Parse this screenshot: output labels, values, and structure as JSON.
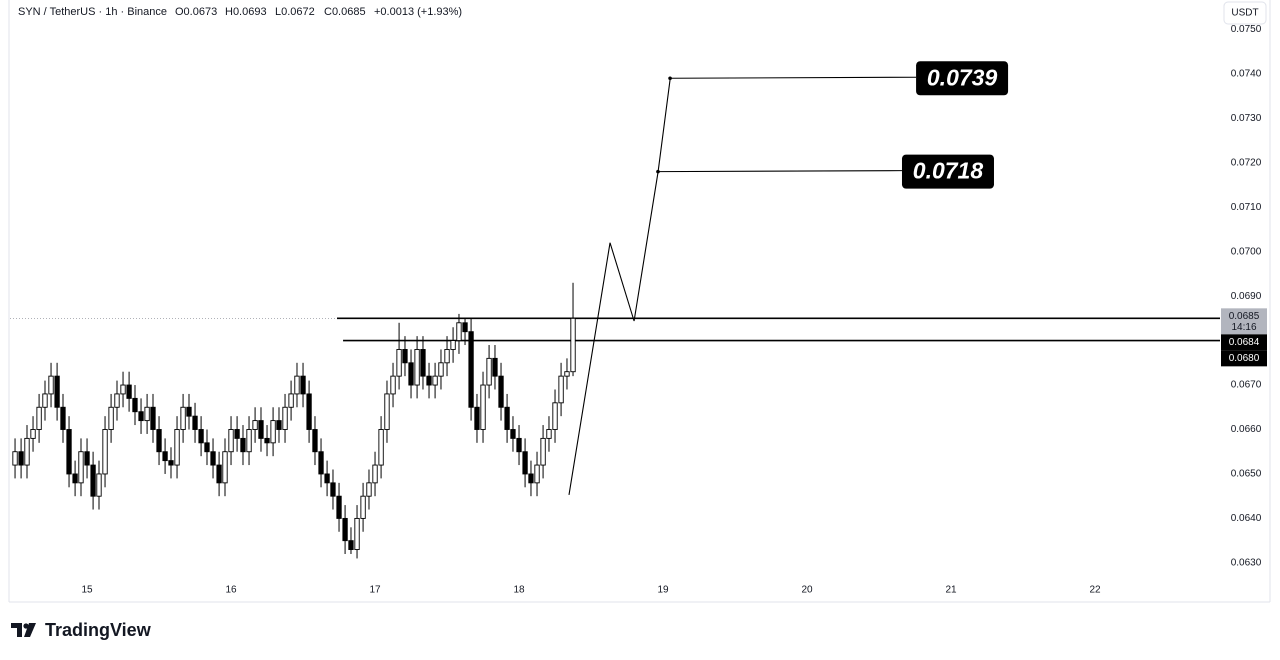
{
  "chart_data": {
    "type": "candlestick",
    "header": {
      "symbol": "SYN / TetherUS · 1h · Binance",
      "open": "O0.0673",
      "high": "H0.0693",
      "low": "L0.0672",
      "close": "C0.0685",
      "change": "+0.0013 (+1.93%)"
    },
    "currency": "USDT",
    "brand": "TradingView",
    "up_color": "#ffffff",
    "down_color": "#000000",
    "x": [
      14.5,
      14.542,
      14.583,
      14.625,
      14.667,
      14.708,
      14.75,
      14.792,
      14.833,
      14.875,
      14.917,
      14.958,
      15,
      15.042,
      15.083,
      15.125,
      15.167,
      15.208,
      15.25,
      15.292,
      15.333,
      15.375,
      15.417,
      15.458,
      15.5,
      15.542,
      15.583,
      15.625,
      15.667,
      15.708,
      15.75,
      15.792,
      15.833,
      15.875,
      15.917,
      15.958,
      16,
      16.042,
      16.083,
      16.125,
      16.167,
      16.208,
      16.25,
      16.292,
      16.333,
      16.375,
      16.417,
      16.458,
      16.5,
      16.542,
      16.583,
      16.625,
      16.667,
      16.708,
      16.75,
      16.792,
      16.833,
      16.875,
      16.917,
      16.958,
      17,
      17.042,
      17.083,
      17.125,
      17.167,
      17.208,
      17.25,
      17.292,
      17.333,
      17.375,
      17.417,
      17.458,
      17.5,
      17.542,
      17.583,
      17.625,
      17.667,
      17.708,
      17.75,
      17.792,
      17.833,
      17.875,
      17.917,
      17.958,
      18,
      18.042,
      18.083,
      18.125,
      18.167,
      18.208,
      18.25,
      18.292,
      18.333,
      18.375
    ],
    "open": [
      0.0652,
      0.0655,
      0.0652,
      0.0658,
      0.066,
      0.0665,
      0.0668,
      0.0672,
      0.0665,
      0.066,
      0.065,
      0.0648,
      0.0655,
      0.0652,
      0.0645,
      0.065,
      0.066,
      0.0665,
      0.0668,
      0.067,
      0.0667,
      0.0664,
      0.0662,
      0.0665,
      0.066,
      0.0655,
      0.0653,
      0.0652,
      0.066,
      0.0665,
      0.0663,
      0.066,
      0.0657,
      0.0655,
      0.0652,
      0.0648,
      0.0655,
      0.066,
      0.0658,
      0.0655,
      0.066,
      0.0662,
      0.0658,
      0.0657,
      0.0662,
      0.066,
      0.0665,
      0.0668,
      0.0672,
      0.0668,
      0.066,
      0.0655,
      0.065,
      0.0648,
      0.0645,
      0.064,
      0.0635,
      0.0633,
      0.064,
      0.0645,
      0.0648,
      0.0652,
      0.066,
      0.0668,
      0.0672,
      0.0678,
      0.0675,
      0.067,
      0.0678,
      0.0672,
      0.067,
      0.0672,
      0.0675,
      0.0678,
      0.068,
      0.0684,
      0.0682,
      0.0665,
      0.066,
      0.067,
      0.0676,
      0.0672,
      0.0665,
      0.066,
      0.0658,
      0.0655,
      0.065,
      0.0648,
      0.0652,
      0.0658,
      0.066,
      0.0666,
      0.0672,
      0.0673
    ],
    "high": [
      0.0658,
      0.0658,
      0.0661,
      0.0663,
      0.0668,
      0.0671,
      0.0675,
      0.0675,
      0.0668,
      0.0663,
      0.0653,
      0.0658,
      0.0658,
      0.0655,
      0.0653,
      0.0663,
      0.0668,
      0.0671,
      0.0673,
      0.0673,
      0.067,
      0.0667,
      0.0668,
      0.0668,
      0.0663,
      0.0658,
      0.0656,
      0.0663,
      0.0668,
      0.0668,
      0.0666,
      0.0663,
      0.066,
      0.0658,
      0.0655,
      0.0658,
      0.0663,
      0.0663,
      0.0661,
      0.0663,
      0.0665,
      0.0665,
      0.0661,
      0.0665,
      0.0665,
      0.0668,
      0.0671,
      0.0675,
      0.0675,
      0.0671,
      0.0663,
      0.0658,
      0.0653,
      0.0651,
      0.0648,
      0.0643,
      0.0638,
      0.0643,
      0.0648,
      0.0651,
      0.0655,
      0.0663,
      0.0671,
      0.0675,
      0.0684,
      0.0681,
      0.0678,
      0.0681,
      0.0681,
      0.0675,
      0.0675,
      0.0678,
      0.0681,
      0.0683,
      0.0686,
      0.0685,
      0.0685,
      0.0668,
      0.0673,
      0.0679,
      0.0679,
      0.0675,
      0.0668,
      0.0663,
      0.0661,
      0.0658,
      0.0653,
      0.0655,
      0.0661,
      0.0663,
      0.0669,
      0.0675,
      0.0676,
      0.0693
    ],
    "low": [
      0.0649,
      0.0649,
      0.0649,
      0.0655,
      0.0657,
      0.0662,
      0.0665,
      0.0662,
      0.0657,
      0.0647,
      0.0645,
      0.0645,
      0.0649,
      0.0642,
      0.0642,
      0.0647,
      0.0657,
      0.0662,
      0.0665,
      0.0664,
      0.0661,
      0.0659,
      0.0659,
      0.0657,
      0.0652,
      0.065,
      0.0649,
      0.0649,
      0.0657,
      0.066,
      0.0657,
      0.0654,
      0.0652,
      0.0649,
      0.0645,
      0.0645,
      0.0652,
      0.0655,
      0.0652,
      0.0652,
      0.0657,
      0.0655,
      0.0654,
      0.0654,
      0.0657,
      0.0657,
      0.0662,
      0.0665,
      0.0665,
      0.0657,
      0.0652,
      0.0647,
      0.0645,
      0.0642,
      0.0637,
      0.0632,
      0.0632,
      0.0631,
      0.0637,
      0.0642,
      0.0645,
      0.0649,
      0.0657,
      0.0665,
      0.0669,
      0.0672,
      0.0667,
      0.0667,
      0.0669,
      0.0667,
      0.0667,
      0.0669,
      0.0672,
      0.0675,
      0.0677,
      0.0679,
      0.0662,
      0.0657,
      0.0657,
      0.0667,
      0.0669,
      0.0662,
      0.0657,
      0.0655,
      0.0652,
      0.0647,
      0.0645,
      0.0645,
      0.0649,
      0.0655,
      0.0657,
      0.0663,
      0.0669,
      0.0672
    ],
    "close": [
      0.0655,
      0.0652,
      0.0658,
      0.066,
      0.0665,
      0.0668,
      0.0672,
      0.0665,
      0.066,
      0.065,
      0.0648,
      0.0655,
      0.0652,
      0.0645,
      0.065,
      0.066,
      0.0665,
      0.0668,
      0.067,
      0.0667,
      0.0664,
      0.0662,
      0.0665,
      0.066,
      0.0655,
      0.0653,
      0.0652,
      0.066,
      0.0665,
      0.0663,
      0.066,
      0.0657,
      0.0655,
      0.0652,
      0.0648,
      0.0655,
      0.066,
      0.0658,
      0.0655,
      0.066,
      0.0662,
      0.0658,
      0.0657,
      0.0662,
      0.066,
      0.0665,
      0.0668,
      0.0672,
      0.0668,
      0.066,
      0.0655,
      0.065,
      0.0648,
      0.0645,
      0.064,
      0.0635,
      0.0633,
      0.064,
      0.0645,
      0.0648,
      0.0652,
      0.066,
      0.0668,
      0.0672,
      0.0678,
      0.0675,
      0.067,
      0.0678,
      0.0672,
      0.067,
      0.0672,
      0.0675,
      0.0678,
      0.068,
      0.0684,
      0.0682,
      0.0665,
      0.066,
      0.067,
      0.0676,
      0.0672,
      0.0665,
      0.066,
      0.0658,
      0.0655,
      0.065,
      0.0648,
      0.0652,
      0.0658,
      0.066,
      0.0666,
      0.0672,
      0.0673,
      0.0685
    ],
    "levels": [
      {
        "value": 0.0685,
        "from": 16.736
      },
      {
        "value": 0.068,
        "from": 16.778
      }
    ],
    "projection": {
      "x": [
        18.347,
        18.632,
        18.799,
        18.965,
        19.049
      ],
      "y": [
        0.06453,
        0.0702,
        0.06844,
        0.07178,
        0.07387
      ]
    },
    "targets": [
      {
        "value": 0.0718,
        "x": 18.965
      },
      {
        "value": 0.0739,
        "x": 19.049
      }
    ],
    "last_price": 0.0685,
    "countdown": "14:16",
    "price_tags": [
      {
        "value": 0.0685,
        "label": "0.0685"
      },
      {
        "value": 0.0684,
        "label": "0.0684"
      },
      {
        "value": 0.068,
        "label": "0.0680"
      }
    ],
    "xlim": [
      14.465,
      22.868
    ],
    "xticks": [
      15,
      16,
      17,
      18,
      19,
      20,
      21,
      22
    ],
    "ylim": [
      0.06266,
      0.07566
    ],
    "yticks": [
      {
        "value": 0.063,
        "label": "0.0630"
      },
      {
        "value": 0.064,
        "label": "0.0640"
      },
      {
        "value": 0.065,
        "label": "0.0650"
      },
      {
        "value": 0.066,
        "label": "0.0660"
      },
      {
        "value": 0.067,
        "label": "0.0670"
      },
      {
        "value": 0.068,
        "label": "0.0680"
      },
      {
        "value": 0.069,
        "label": "0.0690"
      },
      {
        "value": 0.07,
        "label": "0.0700"
      },
      {
        "value": 0.071,
        "label": "0.0710"
      },
      {
        "value": 0.072,
        "label": "0.0720"
      },
      {
        "value": 0.073,
        "label": "0.0730"
      },
      {
        "value": 0.074,
        "label": "0.0740"
      },
      {
        "value": 0.075,
        "label": "0.0750"
      }
    ]
  }
}
